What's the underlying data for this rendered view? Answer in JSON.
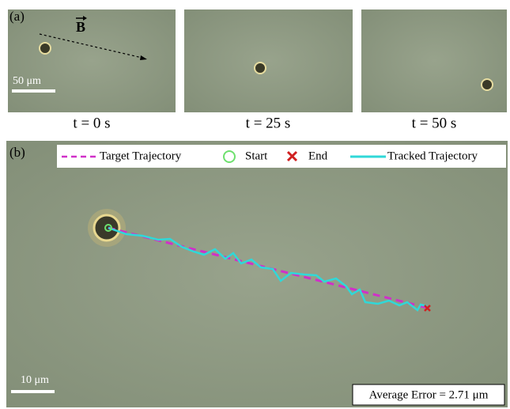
{
  "panel_a": {
    "label": "(a)",
    "field_label": "B",
    "scale_bar": "50 μm",
    "frames": [
      {
        "caption": "t = 0 s"
      },
      {
        "caption": "t = 25 s"
      },
      {
        "caption": "t = 50 s"
      }
    ]
  },
  "panel_b": {
    "label": "(b)",
    "legend": [
      "Target Trajectory",
      "Start",
      "End",
      "Tracked Trajectory"
    ],
    "scale_bar": "10 μm",
    "error_note": "Average Error = 2.71 μm"
  }
}
